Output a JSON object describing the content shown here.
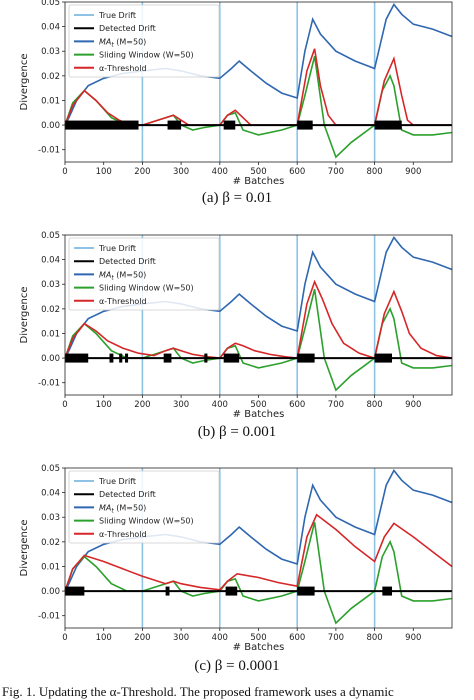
{
  "chart_data": [
    {
      "type": "line",
      "caption": "(a) β = 0.01",
      "xlabel": "# Batches",
      "ylabel": "Divergence",
      "xlim": [
        0,
        1000
      ],
      "ylim": [
        -0.015,
        0.05
      ],
      "xticks": [
        0,
        100,
        200,
        300,
        400,
        500,
        600,
        700,
        800,
        900
      ],
      "yticks": [
        -0.01,
        0.0,
        0.01,
        0.02,
        0.03,
        0.04,
        0.05
      ],
      "yticklabels": [
        "-0.01",
        "0.00",
        "0.01",
        "0.02",
        "0.03",
        "0.04",
        "0.05"
      ],
      "legend_position": "top-left",
      "grid": false,
      "true_drift": [
        200,
        400,
        600,
        800
      ],
      "detected_drift_intervals": [
        [
          0,
          190
        ],
        [
          265,
          300
        ],
        [
          410,
          440
        ],
        [
          600,
          640
        ],
        [
          800,
          870
        ]
      ],
      "series": [
        {
          "name": "True Drift",
          "color": "#8ec3e6"
        },
        {
          "name": "Detected Drift",
          "color": "#000000"
        },
        {
          "name": "MA_t (M=50)",
          "color": "#2f67b1",
          "x": [
            0,
            10,
            30,
            60,
            100,
            150,
            200,
            260,
            300,
            350,
            400,
            430,
            450,
            480,
            520,
            560,
            600,
            620,
            640,
            660,
            700,
            750,
            800,
            830,
            850,
            870,
            900,
            950,
            1000
          ],
          "y": [
            0.0,
            0.003,
            0.01,
            0.016,
            0.019,
            0.021,
            0.022,
            0.023,
            0.022,
            0.02,
            0.019,
            0.023,
            0.026,
            0.022,
            0.017,
            0.013,
            0.011,
            0.03,
            0.043,
            0.037,
            0.03,
            0.026,
            0.023,
            0.043,
            0.049,
            0.045,
            0.041,
            0.039,
            0.036
          ]
        },
        {
          "name": "Sliding Window (W=50)",
          "color": "#2ca02c",
          "x": [
            0,
            20,
            50,
            80,
            120,
            160,
            200,
            260,
            280,
            300,
            330,
            360,
            400,
            420,
            440,
            460,
            500,
            560,
            600,
            620,
            645,
            670,
            700,
            740,
            800,
            820,
            840,
            850,
            870,
            900,
            950,
            1000
          ],
          "y": [
            0.0,
            0.009,
            0.014,
            0.01,
            0.003,
            0.0,
            0.0,
            0.003,
            0.004,
            0.0,
            -0.002,
            -0.001,
            0.0,
            0.004,
            0.005,
            -0.002,
            -0.004,
            -0.002,
            0.0,
            0.012,
            0.028,
            0.0,
            -0.013,
            -0.007,
            0.0,
            0.014,
            0.02,
            0.016,
            -0.002,
            -0.004,
            -0.004,
            -0.003
          ]
        },
        {
          "name": "α-Threshold",
          "color": "#d62728",
          "x": [
            0,
            20,
            50,
            80,
            110,
            140,
            170,
            200,
            260,
            280,
            300,
            320,
            400,
            420,
            440,
            460,
            480,
            600,
            625,
            645,
            660,
            680,
            700,
            800,
            825,
            850,
            870,
            885,
            900,
            1000
          ],
          "y": [
            0.0,
            0.008,
            0.014,
            0.01,
            0.005,
            0.002,
            0.0,
            0.0,
            0.003,
            0.004,
            0.002,
            0.0,
            0.0,
            0.004,
            0.006,
            0.003,
            0.0,
            0.0,
            0.022,
            0.031,
            0.016,
            0.004,
            0.0,
            0.0,
            0.018,
            0.027,
            0.012,
            0.002,
            0.0,
            0.0
          ]
        }
      ]
    },
    {
      "type": "line",
      "caption": "(b) β = 0.001",
      "xlabel": "# Batches",
      "ylabel": "Divergence",
      "xlim": [
        0,
        1000
      ],
      "ylim": [
        -0.015,
        0.05
      ],
      "xticks": [
        0,
        100,
        200,
        300,
        400,
        500,
        600,
        700,
        800,
        900
      ],
      "yticks": [
        -0.01,
        0.0,
        0.01,
        0.02,
        0.03,
        0.04,
        0.05
      ],
      "yticklabels": [
        "-0.01",
        "0.00",
        "0.01",
        "0.02",
        "0.03",
        "0.04",
        "0.05"
      ],
      "legend_position": "top-left",
      "grid": false,
      "true_drift": [
        200,
        400,
        600,
        800
      ],
      "detected_drift_intervals": [
        [
          0,
          60
        ],
        [
          115,
          125
        ],
        [
          140,
          148
        ],
        [
          155,
          163
        ],
        [
          255,
          275
        ],
        [
          360,
          368
        ],
        [
          410,
          450
        ],
        [
          600,
          645
        ],
        [
          800,
          845
        ]
      ],
      "series": [
        {
          "name": "True Drift",
          "color": "#8ec3e6"
        },
        {
          "name": "Detected Drift",
          "color": "#000000"
        },
        {
          "name": "MA_t (M=50)",
          "color": "#2f67b1",
          "x": [
            0,
            10,
            30,
            60,
            100,
            150,
            200,
            260,
            300,
            350,
            400,
            430,
            450,
            480,
            520,
            560,
            600,
            620,
            640,
            660,
            700,
            750,
            800,
            830,
            850,
            870,
            900,
            950,
            1000
          ],
          "y": [
            0.0,
            0.003,
            0.01,
            0.016,
            0.019,
            0.021,
            0.022,
            0.023,
            0.022,
            0.02,
            0.019,
            0.023,
            0.026,
            0.022,
            0.017,
            0.013,
            0.011,
            0.03,
            0.043,
            0.037,
            0.03,
            0.026,
            0.023,
            0.043,
            0.049,
            0.045,
            0.041,
            0.039,
            0.036
          ]
        },
        {
          "name": "Sliding Window (W=50)",
          "color": "#2ca02c",
          "x": [
            0,
            20,
            50,
            80,
            120,
            160,
            200,
            260,
            280,
            300,
            330,
            360,
            400,
            420,
            440,
            460,
            500,
            560,
            600,
            620,
            645,
            670,
            700,
            740,
            800,
            820,
            840,
            850,
            870,
            900,
            950,
            1000
          ],
          "y": [
            0.0,
            0.009,
            0.014,
            0.01,
            0.003,
            0.0,
            0.0,
            0.003,
            0.004,
            0.0,
            -0.002,
            -0.001,
            0.0,
            0.004,
            0.005,
            -0.002,
            -0.004,
            -0.002,
            0.0,
            0.012,
            0.028,
            0.0,
            -0.013,
            -0.007,
            0.0,
            0.014,
            0.02,
            0.016,
            -0.002,
            -0.004,
            -0.004,
            -0.003
          ]
        },
        {
          "name": "α-Threshold",
          "color": "#d62728",
          "x": [
            0,
            20,
            50,
            80,
            110,
            150,
            190,
            230,
            260,
            280,
            300,
            330,
            370,
            400,
            420,
            440,
            460,
            490,
            530,
            570,
            600,
            625,
            645,
            665,
            690,
            720,
            760,
            800,
            825,
            850,
            870,
            890,
            920,
            960,
            1000
          ],
          "y": [
            0.0,
            0.008,
            0.014,
            0.011,
            0.007,
            0.004,
            0.002,
            0.001,
            0.003,
            0.004,
            0.003,
            0.0015,
            0.0005,
            0.0,
            0.004,
            0.006,
            0.005,
            0.003,
            0.0015,
            0.0005,
            0.0,
            0.022,
            0.031,
            0.024,
            0.014,
            0.006,
            0.002,
            0.0,
            0.018,
            0.027,
            0.019,
            0.01,
            0.004,
            0.001,
            0.0
          ]
        }
      ]
    },
    {
      "type": "line",
      "caption": "(c) β = 0.0001",
      "xlabel": "# Batches",
      "ylabel": "Divergence",
      "xlim": [
        0,
        1000
      ],
      "ylim": [
        -0.015,
        0.05
      ],
      "xticks": [
        0,
        100,
        200,
        300,
        400,
        500,
        600,
        700,
        800,
        900
      ],
      "yticks": [
        -0.01,
        0.0,
        0.01,
        0.02,
        0.03,
        0.04,
        0.05
      ],
      "yticklabels": [
        "-0.01",
        "0.00",
        "0.01",
        "0.02",
        "0.03",
        "0.04",
        "0.05"
      ],
      "legend_position": "top-left",
      "grid": false,
      "true_drift": [
        200,
        400,
        600,
        800
      ],
      "detected_drift_intervals": [
        [
          0,
          50
        ],
        [
          260,
          270
        ],
        [
          415,
          445
        ],
        [
          600,
          645
        ],
        [
          820,
          845
        ]
      ],
      "series": [
        {
          "name": "True Drift",
          "color": "#8ec3e6"
        },
        {
          "name": "Detected Drift",
          "color": "#000000"
        },
        {
          "name": "MA_t (M=50)",
          "color": "#2f67b1",
          "x": [
            0,
            10,
            30,
            60,
            100,
            150,
            200,
            260,
            300,
            350,
            400,
            430,
            450,
            480,
            520,
            560,
            600,
            620,
            640,
            660,
            700,
            750,
            800,
            830,
            850,
            870,
            900,
            950,
            1000
          ],
          "y": [
            0.0,
            0.003,
            0.01,
            0.016,
            0.019,
            0.021,
            0.022,
            0.023,
            0.022,
            0.02,
            0.019,
            0.023,
            0.026,
            0.022,
            0.017,
            0.013,
            0.011,
            0.03,
            0.043,
            0.037,
            0.03,
            0.026,
            0.023,
            0.043,
            0.049,
            0.045,
            0.041,
            0.039,
            0.036
          ]
        },
        {
          "name": "Sliding Window (W=50)",
          "color": "#2ca02c",
          "x": [
            0,
            20,
            50,
            80,
            120,
            160,
            200,
            260,
            280,
            300,
            330,
            360,
            400,
            420,
            440,
            460,
            500,
            560,
            600,
            620,
            645,
            670,
            700,
            740,
            800,
            820,
            840,
            850,
            870,
            900,
            950,
            1000
          ],
          "y": [
            0.0,
            0.009,
            0.014,
            0.01,
            0.003,
            0.0,
            0.0,
            0.003,
            0.004,
            0.0,
            -0.002,
            -0.001,
            0.0,
            0.004,
            0.005,
            -0.002,
            -0.004,
            -0.002,
            0.0,
            0.012,
            0.028,
            0.0,
            -0.013,
            -0.007,
            0.0,
            0.014,
            0.02,
            0.016,
            -0.002,
            -0.004,
            -0.004,
            -0.003
          ]
        },
        {
          "name": "α-Threshold",
          "color": "#d62728",
          "x": [
            0,
            20,
            50,
            100,
            150,
            200,
            260,
            280,
            300,
            350,
            400,
            420,
            445,
            500,
            550,
            600,
            625,
            650,
            700,
            750,
            800,
            825,
            850,
            900,
            950,
            1000
          ],
          "y": [
            0.0,
            0.009,
            0.0145,
            0.012,
            0.009,
            0.006,
            0.003,
            0.004,
            0.003,
            0.0015,
            0.0005,
            0.004,
            0.007,
            0.0055,
            0.0035,
            0.002,
            0.022,
            0.031,
            0.025,
            0.018,
            0.012,
            0.022,
            0.0275,
            0.022,
            0.016,
            0.01
          ]
        }
      ]
    }
  ],
  "legend": {
    "true_drift": "True Drift",
    "detected_drift": "Detected Drift",
    "ma_main": "MA",
    "ma_sub": "t",
    "ma_tail": " (M=50)",
    "sliding_window": "Sliding Window (W=50)",
    "alpha_threshold": "α-Threshold"
  },
  "captions": [
    "(a) β = 0.01",
    "(b) β = 0.001",
    "(c) β = 0.0001"
  ],
  "figure_caption": "Fig. 1.  Updating the α-Threshold. The proposed framework uses a dynamic"
}
